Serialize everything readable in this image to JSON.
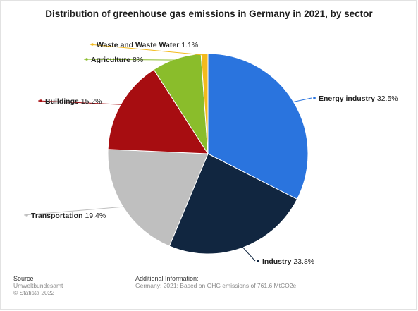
{
  "chart_data": {
    "type": "pie",
    "title": "Distribution of greenhouse gas emissions in Germany in 2021, by sector",
    "unit": "%",
    "slices": [
      {
        "name": "Energy industry",
        "value": 32.5,
        "label": "32.5%",
        "color": "#2a74de"
      },
      {
        "name": "Industry",
        "value": 23.8,
        "label": "23.8%",
        "color": "#112640"
      },
      {
        "name": "Transportation",
        "value": 19.4,
        "label": "19.4%",
        "color": "#bfbfbf"
      },
      {
        "name": "Buildings",
        "value": 15.2,
        "label": "15.2%",
        "color": "#a70d11"
      },
      {
        "name": "Agriculture",
        "value": 8,
        "label": "8%",
        "color": "#8abd2b"
      },
      {
        "name": "Waste and Waste Water",
        "value": 1.1,
        "label": "1.1%",
        "color": "#f3ba1c"
      }
    ]
  },
  "footer": {
    "source_heading": "Source",
    "source_name": "Umweltbundesamt",
    "copyright": "© Statista 2022",
    "info_heading": "Additional Information:",
    "info_text": "Germany; 2021; Based on GHG emissions of 761.6 MtCO2e"
  }
}
